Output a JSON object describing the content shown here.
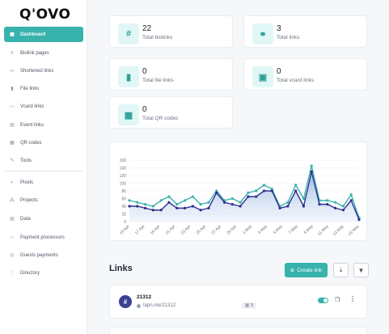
{
  "brand": {
    "logo_text": "Q'OVO"
  },
  "sidebar": {
    "items": [
      {
        "label": "Dashboard",
        "icon": "grid-icon",
        "glyph": "▦",
        "active": true
      },
      {
        "label": "Biolink pages",
        "icon": "hash-icon",
        "glyph": "#"
      },
      {
        "label": "Shortened links",
        "icon": "link-icon",
        "glyph": "∞"
      },
      {
        "label": "File links",
        "icon": "file-icon",
        "glyph": "▮"
      },
      {
        "label": "Vcard links",
        "icon": "id-card-icon",
        "glyph": "▭"
      },
      {
        "label": "Event links",
        "icon": "calendar-icon",
        "glyph": "▤"
      },
      {
        "label": "QR codes",
        "icon": "qr-icon",
        "glyph": "▩"
      },
      {
        "label": "Tools",
        "icon": "tools-icon",
        "glyph": "✎"
      },
      {
        "label": "Pixels",
        "icon": "adjust-icon",
        "glyph": "◐"
      },
      {
        "label": "Projects",
        "icon": "project-diagram-icon",
        "glyph": "⁂"
      },
      {
        "label": "Data",
        "icon": "database-icon",
        "glyph": "▤"
      },
      {
        "label": "Payment processors",
        "icon": "credit-card-icon",
        "glyph": "▭"
      },
      {
        "label": "Guests payments",
        "icon": "coins-icon",
        "glyph": "◎"
      },
      {
        "label": "Directory",
        "icon": "sitemap-icon",
        "glyph": "⋮"
      }
    ]
  },
  "stats": [
    {
      "value": "22",
      "label": "Total biolinks",
      "icon": "hash-icon",
      "glyph": "#"
    },
    {
      "value": "3",
      "label": "Total links",
      "icon": "link-icon",
      "glyph": "⚭"
    },
    {
      "value": "0",
      "label": "Total file links",
      "icon": "file-icon",
      "glyph": "▮"
    },
    {
      "value": "0",
      "label": "Total vcard links",
      "icon": "id-card-icon",
      "glyph": "▣"
    },
    {
      "value": "0",
      "label": "Total QR codes",
      "icon": "qr-icon",
      "glyph": "▩"
    }
  ],
  "chart_data": {
    "type": "area",
    "title": "",
    "xlabel": "",
    "ylabel": "",
    "ylim": [
      0,
      160
    ],
    "yticks": [
      0,
      20,
      40,
      60,
      80,
      100,
      120,
      140,
      160
    ],
    "grid": true,
    "x_tick_labels": [
      "15 Apr",
      "17 Apr",
      "19 Apr",
      "21 Apr",
      "23 Apr",
      "25 Apr",
      "27 Apr",
      "29 Apr",
      "1 May",
      "3 May",
      "5 May",
      "7 May",
      "9 May",
      "11 May",
      "13 May",
      "15 May"
    ],
    "series": [
      {
        "color": "#38b2ac",
        "values": [
          55,
          50,
          45,
          40,
          55,
          65,
          45,
          55,
          65,
          45,
          50,
          80,
          55,
          60,
          50,
          75,
          80,
          95,
          85,
          40,
          50,
          95,
          60,
          145,
          55,
          55,
          50,
          40,
          70,
          10
        ]
      },
      {
        "color": "#2d2f8f",
        "values": [
          40,
          40,
          35,
          30,
          30,
          50,
          35,
          35,
          40,
          30,
          35,
          75,
          50,
          45,
          40,
          65,
          65,
          80,
          80,
          35,
          40,
          80,
          40,
          130,
          45,
          45,
          35,
          30,
          55,
          5
        ]
      }
    ]
  },
  "links_section": {
    "title": "Links",
    "create_label": "Create link",
    "rows": [
      {
        "name": "21312",
        "url": "tapn.me/21312",
        "clicks": "3"
      }
    ]
  }
}
